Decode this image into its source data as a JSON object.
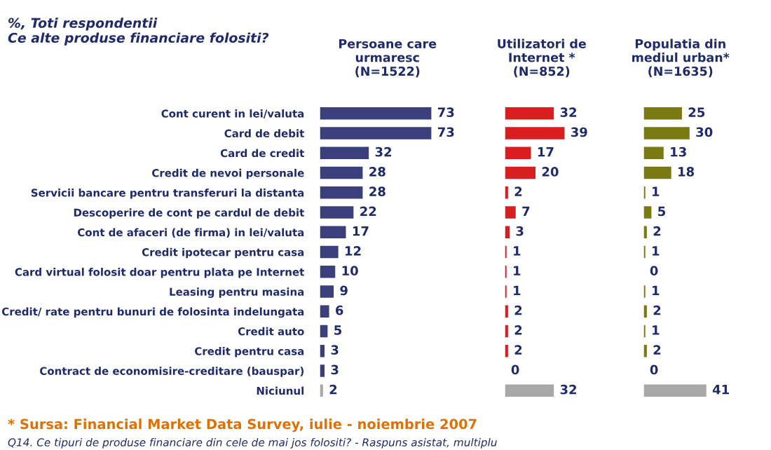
{
  "chart_data": [
    {
      "type": "bar",
      "orientation": "horizontal",
      "title": "Persoane care\nurmaresc\n(N=1522)",
      "data_labels": true,
      "tick_labels": "y",
      "grid": false,
      "legend": false,
      "categories": [
        "Cont curent in lei/valuta",
        "Card de debit",
        "Card de credit",
        "Credit de nevoi personale",
        "Servicii bancare pentru transferuri la distanta",
        "Descoperire de cont pe cardul de debit",
        "Cont de afaceri (de firma) in lei/valuta",
        "Credit ipotecar pentru casa",
        "Card virtual folosit doar pentru plata pe Internet",
        "Leasing pentru masina",
        "Credit/ rate pentru bunuri de folosinta indelungata",
        "Credit auto",
        "Credit pentru casa",
        "Contract de economisire-creditare (bauspar)",
        "Niciunul"
      ],
      "values": [
        73,
        73,
        32,
        28,
        28,
        22,
        17,
        12,
        10,
        9,
        6,
        5,
        3,
        3,
        2
      ],
      "colors": [
        "#3b3f7c",
        "#3b3f7c",
        "#3b3f7c",
        "#3b3f7c",
        "#3b3f7c",
        "#3b3f7c",
        "#3b3f7c",
        "#3b3f7c",
        "#3b3f7c",
        "#3b3f7c",
        "#3b3f7c",
        "#3b3f7c",
        "#3b3f7c",
        "#3b3f7c",
        "#a8a8a8"
      ],
      "annotations": [
        "%, Toti respondentii\nCe alte produse financiare folositi?",
        "* Sursa: Financial Market Data Survey, iulie - noiembrie 2007",
        "Q14. Ce tipuri de produse financiare din cele de mai jos folositi? - Raspuns asistat, multiplu"
      ]
    },
    {
      "type": "bar",
      "orientation": "horizontal",
      "title": "Utilizatori de\nInternet *\n(N=852)",
      "data_labels": true,
      "tick_labels": false,
      "grid": false,
      "legend": false,
      "categories": [
        null,
        null,
        null,
        null,
        null,
        null,
        null,
        null,
        null,
        null,
        null,
        null,
        null,
        null,
        null
      ],
      "values": [
        32,
        39,
        17,
        20,
        2,
        7,
        3,
        1,
        1,
        1,
        2,
        2,
        2,
        0,
        32
      ],
      "colors": [
        "#d81e1e",
        "#d81e1e",
        "#d81e1e",
        "#d81e1e",
        "#d81e1e",
        "#d81e1e",
        "#d81e1e",
        "#d81e1e",
        "#d81e1e",
        "#d81e1e",
        "#d81e1e",
        "#d81e1e",
        "#d81e1e",
        "#d81e1e",
        "#a8a8a8"
      ]
    },
    {
      "type": "bar",
      "orientation": "horizontal",
      "title": "Populatia din\nmediul urban*\n(N=1635)",
      "data_labels": true,
      "tick_labels": false,
      "grid": false,
      "legend": false,
      "categories": [
        null,
        null,
        null,
        null,
        null,
        null,
        null,
        null,
        null,
        null,
        null,
        null,
        null,
        null,
        null
      ],
      "values": [
        25,
        30,
        13,
        18,
        1,
        5,
        2,
        1,
        0,
        1,
        2,
        1,
        2,
        0,
        41
      ],
      "colors": [
        "#7a7a12",
        "#7a7a12",
        "#7a7a12",
        "#7a7a12",
        "#7a7a12",
        "#7a7a12",
        "#7a7a12",
        "#7a7a12",
        "#7a7a12",
        "#7a7a12",
        "#7a7a12",
        "#7a7a12",
        "#7a7a12",
        "#7a7a12",
        "#a8a8a8"
      ]
    }
  ]
}
